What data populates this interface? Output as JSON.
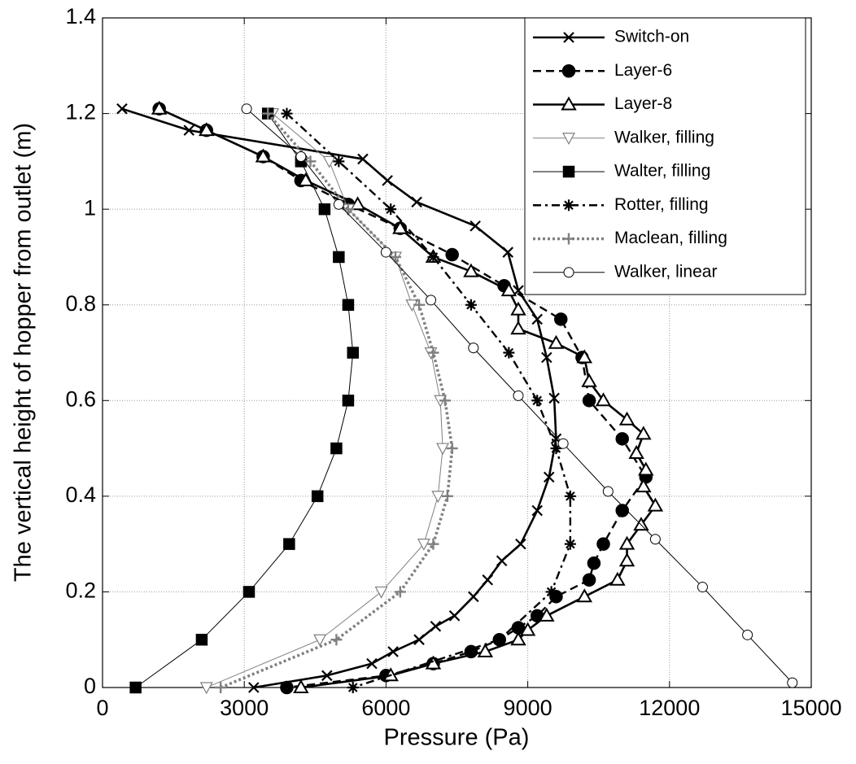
{
  "chart_data": {
    "type": "line",
    "xlabel": "Pressure (Pa)",
    "ylabel": "The vertical height of hopper from outlet (m)",
    "xlim": [
      0,
      15000
    ],
    "xticks": [
      0,
      3000,
      6000,
      9000,
      12000,
      15000
    ],
    "ylim": [
      0,
      1.4
    ],
    "yticks": [
      0,
      0.2,
      0.4,
      0.6,
      0.8,
      1,
      1.2,
      1.4
    ],
    "grid": true,
    "legend": "upper right",
    "series": [
      {
        "name": "Switch-on",
        "color": "#000000",
        "line_style": "solid",
        "marker": "x",
        "x": [
          413,
          1830,
          5510,
          6030,
          6650,
          7890,
          8580,
          8800,
          9200,
          9400,
          9560,
          9600,
          9450,
          9200,
          8850,
          8450,
          8150,
          7850,
          7450,
          7050,
          6700,
          6150,
          5700,
          4750,
          3200
        ],
        "values": [
          1.21,
          1.165,
          1.105,
          1.06,
          1.015,
          0.965,
          0.91,
          0.83,
          0.77,
          0.69,
          0.605,
          0.52,
          0.44,
          0.37,
          0.3,
          0.265,
          0.225,
          0.19,
          0.15,
          0.128,
          0.1,
          0.075,
          0.05,
          0.025,
          0
        ]
      },
      {
        "name": "Layer-6",
        "color": "#000000",
        "line_style": "dashed",
        "marker": "circle-filled",
        "x": [
          1200,
          2200,
          3400,
          4200,
          5200,
          6300,
          7400,
          8500,
          9700,
          10150,
          10300,
          11000,
          11500,
          11000,
          10600,
          10400,
          10300,
          9600,
          9200,
          8800,
          8400,
          7800,
          7000,
          6000,
          3900
        ],
        "values": [
          1.21,
          1.165,
          1.11,
          1.06,
          1.01,
          0.96,
          0.905,
          0.84,
          0.77,
          0.69,
          0.6,
          0.52,
          0.44,
          0.37,
          0.3,
          0.26,
          0.225,
          0.19,
          0.15,
          0.125,
          0.1,
          0.075,
          0.05,
          0.025,
          0
        ]
      },
      {
        "name": "Layer-8",
        "color": "#000000",
        "line_style": "solid",
        "marker": "triangle-up",
        "x": [
          1200,
          2200,
          3400,
          4300,
          5400,
          6300,
          7000,
          7800,
          8600,
          8800,
          8800,
          9600,
          10200,
          10300,
          10600,
          11100,
          11450,
          11300,
          11500,
          11450,
          11700,
          11400,
          11100,
          11100,
          10900,
          10200,
          9400,
          9000,
          8800,
          8100,
          7000,
          6100,
          4200
        ],
        "values": [
          1.21,
          1.165,
          1.11,
          1.06,
          1.01,
          0.96,
          0.9,
          0.87,
          0.83,
          0.79,
          0.75,
          0.72,
          0.69,
          0.64,
          0.6,
          0.56,
          0.53,
          0.49,
          0.455,
          0.42,
          0.38,
          0.34,
          0.3,
          0.265,
          0.225,
          0.19,
          0.15,
          0.12,
          0.1,
          0.075,
          0.05,
          0.025,
          0
        ]
      },
      {
        "name": "Walker, filling",
        "color": "#808080",
        "line_style": "thin",
        "marker": "triangle-down",
        "x": [
          3600,
          4800,
          5200,
          6200,
          6550,
          6950,
          7150,
          7200,
          7100,
          6800,
          5900,
          4600,
          2200
        ],
        "values": [
          1.2,
          1.1,
          1,
          0.9,
          0.8,
          0.7,
          0.6,
          0.5,
          0.4,
          0.3,
          0.2,
          0.1,
          0
        ]
      },
      {
        "name": "Walter, filling",
        "color": "#000000",
        "line_style": "thin",
        "marker": "square-filled",
        "x": [
          3500,
          4200,
          4700,
          5000,
          5200,
          5300,
          5200,
          4950,
          4550,
          3950,
          3100,
          2100,
          700
        ],
        "values": [
          1.2,
          1.1,
          1,
          0.9,
          0.8,
          0.7,
          0.6,
          0.5,
          0.4,
          0.3,
          0.2,
          0.1,
          0
        ]
      },
      {
        "name": "Rotter, filling",
        "color": "#000000",
        "line_style": "dashdot",
        "marker": "asterisk",
        "x": [
          3900,
          5000,
          6100,
          7000,
          7800,
          8600,
          9200,
          9600,
          9900,
          9900,
          9500,
          8400,
          5300
        ],
        "values": [
          1.2,
          1.1,
          1,
          0.9,
          0.8,
          0.7,
          0.6,
          0.5,
          0.4,
          0.3,
          0.2,
          0.1,
          0
        ]
      },
      {
        "name": "Maclean, filling",
        "color": "#808080",
        "line_style": "dotted",
        "marker": "plus",
        "x": [
          3500,
          4400,
          5200,
          6200,
          6700,
          7000,
          7250,
          7400,
          7300,
          7000,
          6300,
          4950,
          2500
        ],
        "values": [
          1.2,
          1.1,
          1,
          0.9,
          0.8,
          0.7,
          0.6,
          0.5,
          0.4,
          0.3,
          0.2,
          0.1,
          0
        ]
      },
      {
        "name": "Walker, linear",
        "color": "#000000",
        "line_style": "thin",
        "marker": "circle-open",
        "x": [
          3050,
          4200,
          5000,
          6000,
          6950,
          7850,
          8800,
          9750,
          10700,
          11700,
          12700,
          13650,
          14600
        ],
        "values": [
          1.21,
          1.11,
          1.01,
          0.91,
          0.81,
          0.71,
          0.61,
          0.51,
          0.41,
          0.31,
          0.21,
          0.11,
          0.01
        ]
      }
    ]
  }
}
